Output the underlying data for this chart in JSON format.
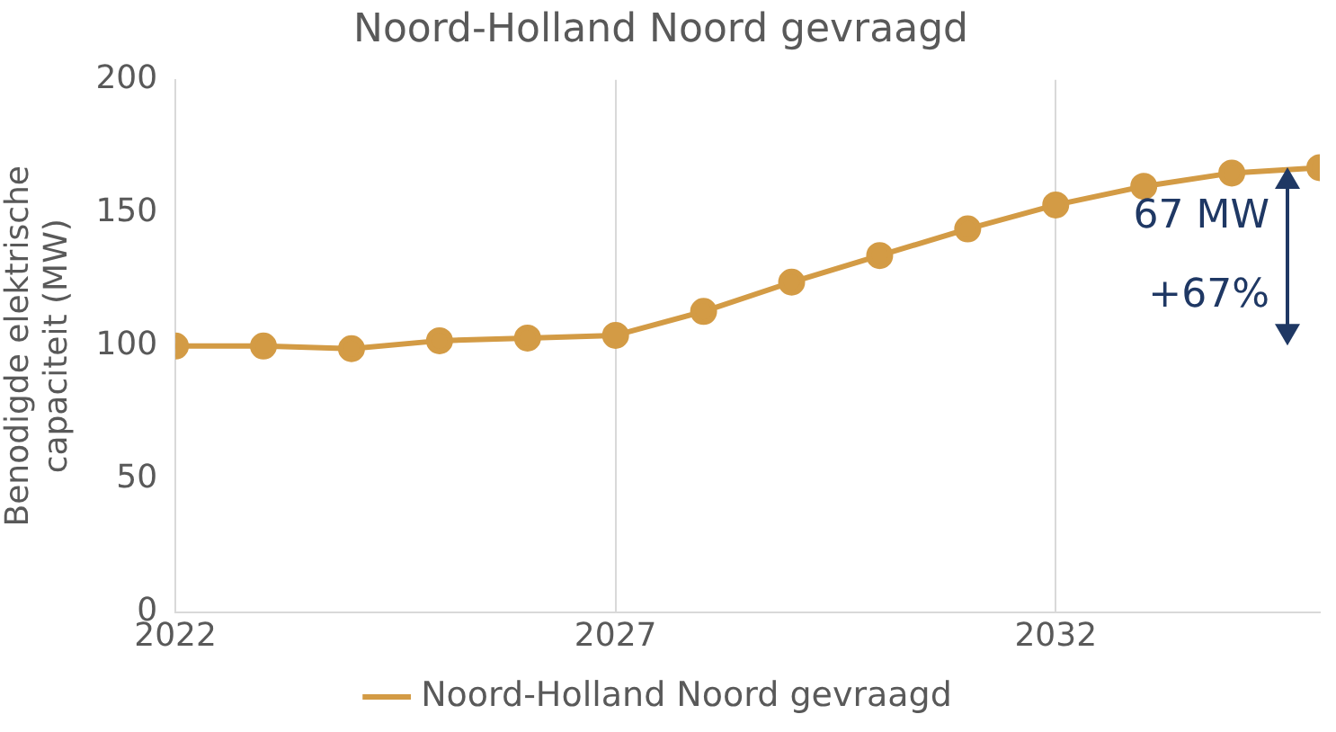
{
  "chart_data": {
    "type": "line",
    "title": "Noord-Holland Noord gevraagd",
    "ylabel": "Benodigde elektrische capaciteit (MW)",
    "x": [
      2022,
      2023,
      2024,
      2025,
      2026,
      2027,
      2028,
      2029,
      2030,
      2031,
      2032,
      2033,
      2034,
      2035
    ],
    "series": [
      {
        "name": "Noord-Holland Noord gevraagd",
        "color": "#d39b45",
        "values": [
          100,
          100,
          99,
          102,
          103,
          104,
          113,
          124,
          134,
          144,
          153,
          160,
          165,
          167
        ]
      }
    ],
    "xlim": [
      2022,
      2035
    ],
    "xticks": [
      2022,
      2027,
      2032
    ],
    "ylim": [
      0,
      200
    ],
    "yticks": [
      0,
      50,
      100,
      150,
      200
    ],
    "grid": "x",
    "legend": "bottom",
    "marker": "circle",
    "line_style": "solid",
    "annotations": [
      "67 MW",
      "+67%"
    ]
  }
}
